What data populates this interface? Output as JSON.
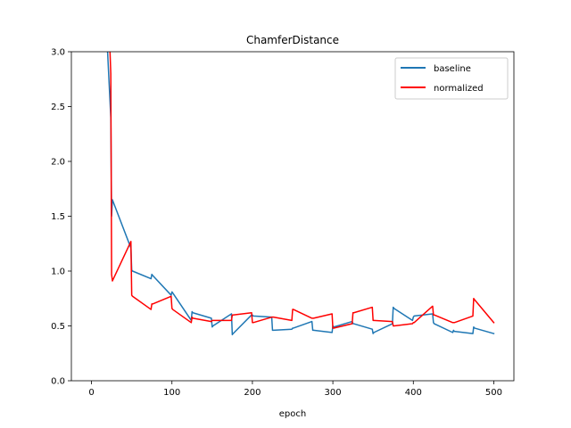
{
  "chart_data": {
    "type": "line",
    "title": "ChamferDistance",
    "xlabel": "epoch",
    "ylabel": "",
    "xlim": [
      -25,
      525
    ],
    "ylim": [
      0,
      3.0
    ],
    "xticks": [
      0,
      100,
      200,
      300,
      400,
      500
    ],
    "xtick_labels": [
      "0",
      "100",
      "200",
      "300",
      "400",
      "500"
    ],
    "yticks": [
      0.0,
      0.5,
      1.0,
      1.5,
      2.0,
      2.5,
      3.0
    ],
    "ytick_labels": [
      "0.0",
      "0.5",
      "1.0",
      "1.5",
      "2.0",
      "2.5",
      "3.0"
    ],
    "grid": false,
    "legend_position": "top-right",
    "series": [
      {
        "name": "baseline",
        "color": "#1f77b4",
        "x": [
          20,
          24,
          25,
          26,
          49,
          50,
          51,
          74,
          75,
          76,
          99,
          100,
          101,
          124,
          125,
          126,
          149,
          150,
          151,
          174,
          175,
          176,
          199,
          200,
          201,
          224,
          225,
          226,
          249,
          250,
          251,
          274,
          275,
          276,
          299,
          300,
          301,
          324,
          325,
          326,
          349,
          350,
          351,
          374,
          375,
          376,
          399,
          400,
          401,
          424,
          425,
          426,
          449,
          450,
          451,
          474,
          475,
          476,
          500
        ],
        "y": [
          3.0,
          2.4,
          1.5,
          1.65,
          1.21,
          1.01,
          1.0,
          0.93,
          0.97,
          0.96,
          0.78,
          0.81,
          0.8,
          0.55,
          0.63,
          0.62,
          0.57,
          0.49,
          0.5,
          0.61,
          0.42,
          0.43,
          0.6,
          0.6,
          0.59,
          0.58,
          0.46,
          0.46,
          0.47,
          0.48,
          0.48,
          0.54,
          0.46,
          0.46,
          0.44,
          0.5,
          0.49,
          0.54,
          0.52,
          0.52,
          0.47,
          0.43,
          0.44,
          0.52,
          0.67,
          0.66,
          0.55,
          0.58,
          0.59,
          0.61,
          0.53,
          0.52,
          0.44,
          0.46,
          0.45,
          0.43,
          0.49,
          0.48,
          0.43
        ]
      },
      {
        "name": "normalized",
        "color": "#ff0000",
        "x": [
          23,
          24,
          25,
          26,
          49,
          50,
          51,
          74,
          75,
          76,
          99,
          100,
          101,
          124,
          125,
          126,
          149,
          150,
          151,
          174,
          175,
          176,
          199,
          200,
          201,
          224,
          225,
          226,
          249,
          250,
          251,
          274,
          275,
          276,
          299,
          300,
          301,
          324,
          325,
          326,
          349,
          350,
          351,
          374,
          375,
          376,
          399,
          400,
          401,
          424,
          425,
          426,
          449,
          450,
          451,
          474,
          475,
          476,
          500
        ],
        "y": [
          3.0,
          2.8,
          0.97,
          0.91,
          1.27,
          0.78,
          0.77,
          0.65,
          0.7,
          0.7,
          0.77,
          0.66,
          0.65,
          0.53,
          0.58,
          0.57,
          0.54,
          0.55,
          0.55,
          0.55,
          0.6,
          0.6,
          0.62,
          0.53,
          0.53,
          0.58,
          0.58,
          0.58,
          0.55,
          0.65,
          0.65,
          0.57,
          0.57,
          0.57,
          0.61,
          0.48,
          0.48,
          0.52,
          0.62,
          0.62,
          0.67,
          0.55,
          0.55,
          0.54,
          0.5,
          0.5,
          0.52,
          0.53,
          0.53,
          0.68,
          0.6,
          0.6,
          0.53,
          0.53,
          0.53,
          0.59,
          0.75,
          0.74,
          0.53
        ]
      }
    ]
  }
}
